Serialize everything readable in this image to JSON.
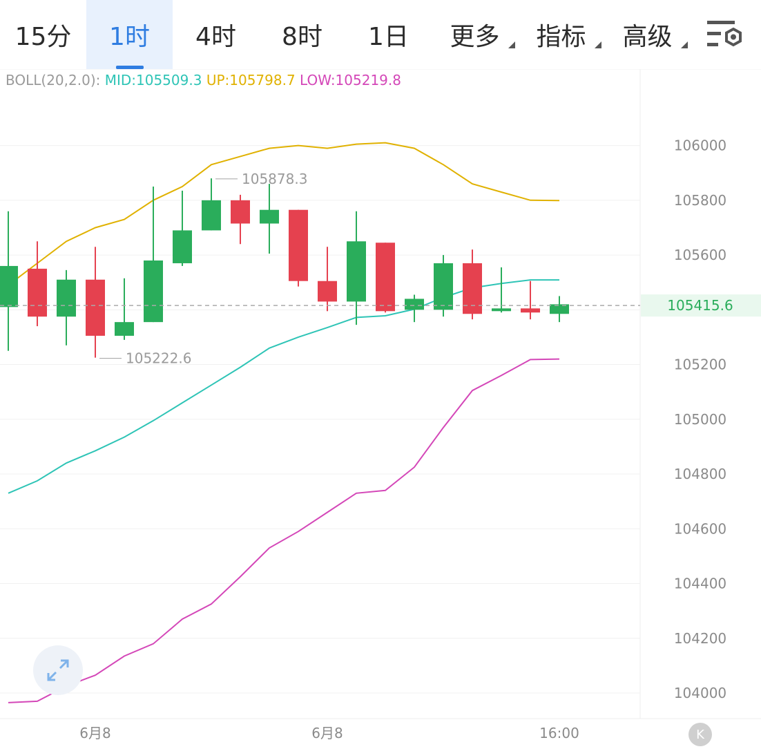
{
  "tabs": [
    {
      "label": "15分",
      "active": false,
      "dropdown": false
    },
    {
      "label": "1时",
      "active": true,
      "dropdown": false
    },
    {
      "label": "4时",
      "active": false,
      "dropdown": false
    },
    {
      "label": "8时",
      "active": false,
      "dropdown": false
    },
    {
      "label": "1日",
      "active": false,
      "dropdown": false
    },
    {
      "label": "更多",
      "active": false,
      "dropdown": true
    },
    {
      "label": "指标",
      "active": false,
      "dropdown": true
    },
    {
      "label": "高级",
      "active": false,
      "dropdown": true
    }
  ],
  "settings_icon": "chart-settings-icon",
  "legend": {
    "name": "BOLL(20,2.0):",
    "mid": "MID:105509.3",
    "up": "UP:105798.7",
    "low": "LOW:105219.8"
  },
  "k_button_label": "K",
  "colors": {
    "accent": "#2f7de1",
    "up_candle": "#2aad5b",
    "down_candle": "#e5414f",
    "mid_line": "#2ec4b6",
    "upper_line": "#e0b100",
    "lower_line": "#d447b8",
    "current_price_bg": "#e9f8ee",
    "current_price_text": "#2aad5b"
  },
  "chart_data": {
    "type": "candlestick",
    "ylim": [
      103920,
      106200
    ],
    "y_ticks": [
      104000,
      104200,
      104400,
      104600,
      104800,
      105000,
      105200,
      105400,
      105600,
      105800,
      106000
    ],
    "y_tick_labels": [
      "104000",
      "104200",
      "104400",
      "104600",
      "104800",
      "105000",
      "105200",
      "",
      "105600",
      "105800",
      "106000"
    ],
    "x_labels": [
      {
        "index": 3,
        "label": "6月8"
      },
      {
        "index": 11,
        "label": "6月8"
      },
      {
        "index": 19,
        "label": "16:00"
      }
    ],
    "candles": [
      {
        "o": 105410,
        "h": 105760,
        "l": 105250,
        "c": 105560
      },
      {
        "o": 105550,
        "h": 105650,
        "l": 105340,
        "c": 105375
      },
      {
        "o": 105375,
        "h": 105545,
        "l": 105270,
        "c": 105510
      },
      {
        "o": 105510,
        "h": 105630,
        "l": 105225,
        "c": 105305
      },
      {
        "o": 105305,
        "h": 105515,
        "l": 105290,
        "c": 105355
      },
      {
        "o": 105355,
        "h": 105850,
        "l": 105355,
        "c": 105580
      },
      {
        "o": 105570,
        "h": 105835,
        "l": 105560,
        "c": 105690
      },
      {
        "o": 105690,
        "h": 105880,
        "l": 105690,
        "c": 105800
      },
      {
        "o": 105800,
        "h": 105820,
        "l": 105640,
        "c": 105715
      },
      {
        "o": 105715,
        "h": 105860,
        "l": 105605,
        "c": 105765
      },
      {
        "o": 105765,
        "h": 105765,
        "l": 105485,
        "c": 105505
      },
      {
        "o": 105505,
        "h": 105630,
        "l": 105395,
        "c": 105430
      },
      {
        "o": 105430,
        "h": 105760,
        "l": 105345,
        "c": 105650
      },
      {
        "o": 105645,
        "h": 105645,
        "l": 105390,
        "c": 105395
      },
      {
        "o": 105400,
        "h": 105455,
        "l": 105355,
        "c": 105440
      },
      {
        "o": 105400,
        "h": 105600,
        "l": 105375,
        "c": 105570
      },
      {
        "o": 105570,
        "h": 105620,
        "l": 105365,
        "c": 105385
      },
      {
        "o": 105395,
        "h": 105555,
        "l": 105390,
        "c": 105405
      },
      {
        "o": 105405,
        "h": 105505,
        "l": 105365,
        "c": 105390
      },
      {
        "o": 105385,
        "h": 105450,
        "l": 105355,
        "c": 105420
      }
    ],
    "boll_up": [
      105490,
      105570,
      105650,
      105700,
      105730,
      105800,
      105850,
      105930,
      105960,
      105990,
      106000,
      105990,
      106005,
      106010,
      105990,
      105930,
      105860,
      105830,
      105800,
      105799
    ],
    "boll_mid": [
      104730,
      104775,
      104840,
      104885,
      104935,
      104995,
      105060,
      105125,
      105190,
      105260,
      105300,
      105335,
      105372,
      105378,
      105402,
      105445,
      105480,
      105496,
      105509,
      105509
    ],
    "boll_low": [
      103965,
      103970,
      104025,
      104065,
      104135,
      104180,
      104270,
      104325,
      104425,
      104530,
      104590,
      104660,
      104730,
      104740,
      104825,
      104970,
      105105,
      105160,
      105218,
      105220
    ],
    "annotations": [
      {
        "index": 7,
        "value": 105878.3,
        "label": "105878.3"
      },
      {
        "index": 3,
        "value": 105222.6,
        "label": "105222.6"
      }
    ],
    "current_price": {
      "value": 105415.6,
      "label": "105415.6"
    },
    "grid": true
  }
}
